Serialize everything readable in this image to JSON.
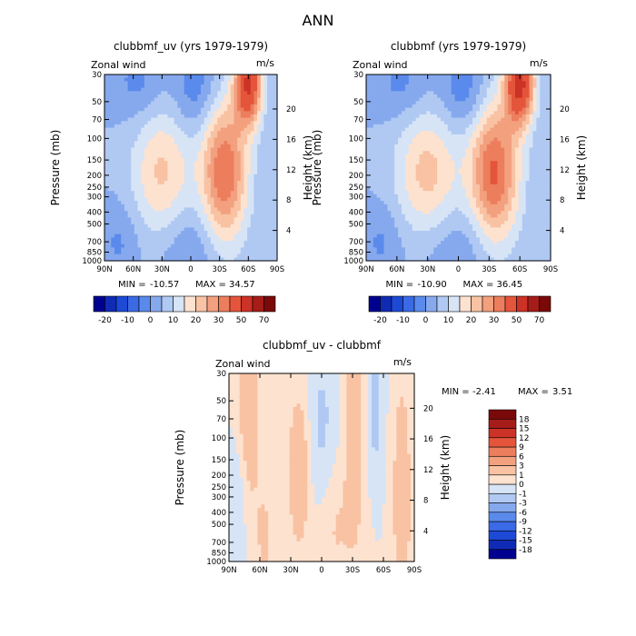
{
  "page_title": "ANN",
  "chart_data": [
    {
      "type": "heatmap",
      "id": "p1",
      "title": "clubbmf_uv (yrs 1979-1979)",
      "label_left": "Zonal wind",
      "label_right": "m/s",
      "xlabel": "",
      "ylabel": "Pressure (mb)",
      "y2label": "Height (km)",
      "x_ticks": [
        "90N",
        "60N",
        "30N",
        "0",
        "30S",
        "60S",
        "90S"
      ],
      "y_ticks": [
        30,
        50,
        70,
        100,
        150,
        200,
        250,
        300,
        400,
        500,
        700,
        850,
        1000
      ],
      "y2_ticks": [
        4,
        8,
        12,
        16,
        20
      ],
      "ylim": [
        1000,
        30
      ],
      "stats": {
        "min_label": "MIN =",
        "min": "-10.57",
        "max_label": "MAX =",
        "max": "34.57"
      },
      "colorbar": {
        "orientation": "horizontal",
        "labels": [
          "-20",
          "-10",
          "0",
          "10",
          "20",
          "30",
          "50",
          "70"
        ],
        "levels": [
          -25,
          -20,
          -15,
          -10,
          -5,
          0,
          5,
          10,
          15,
          20,
          25,
          30,
          40,
          50,
          60,
          70
        ],
        "colors": [
          "#000090",
          "#0f2bb6",
          "#1c4ad6",
          "#3a6ae6",
          "#5a8aeb",
          "#86a9ee",
          "#b0c9f3",
          "#d6e4f6",
          "#fde2cf",
          "#f8c2a3",
          "#f3a07f",
          "#ec7e5d",
          "#e4553b",
          "#cc3226",
          "#a61c18",
          "#7a0a0a"
        ]
      },
      "field_features": [
        {
          "lat": 30,
          "p": 190,
          "value": 16,
          "sigma_lat": 22,
          "sigma_lnp": 0.85
        },
        {
          "lat": -35,
          "p": 190,
          "value": 30,
          "sigma_lat": 17,
          "sigma_lnp": 0.95
        },
        {
          "lat": -60,
          "p": 35,
          "value": 40,
          "sigma_lat": 10,
          "sigma_lnp": 0.55
        },
        {
          "lat": -5,
          "p": 40,
          "value": -9,
          "sigma_lat": 16,
          "sigma_lnp": 0.55
        },
        {
          "lat": 55,
          "p": 35,
          "value": -7,
          "sigma_lat": 18,
          "sigma_lnp": 0.5
        },
        {
          "lat": 0,
          "p": 800,
          "value": -6,
          "sigma_lat": 24,
          "sigma_lnp": 0.6
        },
        {
          "lat": 75,
          "p": 700,
          "value": -6,
          "sigma_lat": 14,
          "sigma_lnp": 0.5
        }
      ]
    },
    {
      "type": "heatmap",
      "id": "p2",
      "title": "clubbmf (yrs 1979-1979)",
      "label_left": "Zonal wind",
      "label_right": "m/s",
      "xlabel": "",
      "ylabel": "Pressure (mb)",
      "y2label": "Height (km)",
      "x_ticks": [
        "90N",
        "60N",
        "30N",
        "0",
        "30S",
        "60S",
        "90S"
      ],
      "y_ticks": [
        30,
        50,
        70,
        100,
        150,
        200,
        250,
        300,
        400,
        500,
        700,
        850,
        1000
      ],
      "y2_ticks": [
        4,
        8,
        12,
        16,
        20
      ],
      "ylim": [
        1000,
        30
      ],
      "stats": {
        "min_label": "MIN =",
        "min": "-10.90",
        "max_label": "MAX =",
        "max": "36.45"
      },
      "colorbar": {
        "orientation": "horizontal",
        "labels": [
          "-20",
          "-10",
          "0",
          "10",
          "20",
          "30",
          "50",
          "70"
        ],
        "levels": [
          -25,
          -20,
          -15,
          -10,
          -5,
          0,
          5,
          10,
          15,
          20,
          25,
          30,
          40,
          50,
          60,
          70
        ],
        "colors": [
          "#000090",
          "#0f2bb6",
          "#1c4ad6",
          "#3a6ae6",
          "#5a8aeb",
          "#86a9ee",
          "#b0c9f3",
          "#d6e4f6",
          "#fde2cf",
          "#f8c2a3",
          "#f3a07f",
          "#ec7e5d",
          "#e4553b",
          "#cc3226",
          "#a61c18",
          "#7a0a0a"
        ]
      },
      "field_features": [
        {
          "lat": 30,
          "p": 190,
          "value": 17,
          "sigma_lat": 22,
          "sigma_lnp": 0.85
        },
        {
          "lat": -35,
          "p": 190,
          "value": 31,
          "sigma_lat": 17,
          "sigma_lnp": 0.95
        },
        {
          "lat": -60,
          "p": 35,
          "value": 42,
          "sigma_lat": 10,
          "sigma_lnp": 0.55
        },
        {
          "lat": -5,
          "p": 40,
          "value": -9.5,
          "sigma_lat": 16,
          "sigma_lnp": 0.55
        },
        {
          "lat": 55,
          "p": 35,
          "value": -7,
          "sigma_lat": 18,
          "sigma_lnp": 0.5
        },
        {
          "lat": 0,
          "p": 800,
          "value": -6,
          "sigma_lat": 24,
          "sigma_lnp": 0.6
        },
        {
          "lat": 75,
          "p": 700,
          "value": -6,
          "sigma_lat": 14,
          "sigma_lnp": 0.5
        }
      ]
    },
    {
      "type": "heatmap",
      "id": "p3",
      "title": "clubbmf_uv - clubbmf",
      "label_left": "Zonal wind",
      "label_right": "m/s",
      "xlabel": "",
      "ylabel": "Pressure (mb)",
      "y2label": "Height (km)",
      "x_ticks": [
        "90N",
        "60N",
        "30N",
        "0",
        "30S",
        "60S",
        "90S"
      ],
      "y_ticks": [
        30,
        50,
        70,
        100,
        150,
        200,
        250,
        300,
        400,
        500,
        700,
        850,
        1000
      ],
      "y2_ticks": [
        4,
        8,
        12,
        16,
        20
      ],
      "ylim": [
        1000,
        30
      ],
      "stats": {
        "min_label": "MIN =",
        "min": "-2.41",
        "max_label": "MAX =",
        "max": "3.51"
      },
      "colorbar": {
        "orientation": "vertical",
        "labels": [
          "18",
          "15",
          "12",
          "9",
          "6",
          "3",
          "1",
          "0",
          "-1",
          "-3",
          "-6",
          "-9",
          "-12",
          "-15",
          "-18"
        ],
        "levels": [
          -18,
          -15,
          -12,
          -9,
          -6,
          -3,
          -1,
          0,
          1,
          3,
          6,
          9,
          12,
          15,
          18
        ],
        "colors": [
          "#000090",
          "#0f2bb6",
          "#1c4ad6",
          "#3a6ae6",
          "#5a8aeb",
          "#86a9ee",
          "#b0c9f3",
          "#d6e4f6",
          "#fde2cf",
          "#f8c2a3",
          "#f3a07f",
          "#ec7e5d",
          "#e4553b",
          "#cc3226",
          "#a61c18",
          "#7a0a0a"
        ]
      },
      "field_features": [
        {
          "lat": 72,
          "p": 55,
          "value": 2.0,
          "sigma_lat": 8,
          "sigma_lnp": 1.2
        },
        {
          "lat": 22,
          "p": 180,
          "value": 2.4,
          "sigma_lat": 7,
          "sigma_lnp": 1.0
        },
        {
          "lat": -32,
          "p": 80,
          "value": 2.2,
          "sigma_lat": 6,
          "sigma_lnp": 1.4
        },
        {
          "lat": -78,
          "p": 300,
          "value": 2.2,
          "sigma_lat": 6,
          "sigma_lnp": 1.5
        },
        {
          "lat": -12,
          "p": 500,
          "value": 1.2,
          "sigma_lat": 14,
          "sigma_lnp": 0.9
        },
        {
          "lat": 55,
          "p": 650,
          "value": 1.1,
          "sigma_lat": 10,
          "sigma_lnp": 1.0
        },
        {
          "lat": 0,
          "p": 90,
          "value": -1.3,
          "sigma_lat": 10,
          "sigma_lnp": 1.2
        },
        {
          "lat": -52,
          "p": 60,
          "value": -1.6,
          "sigma_lat": 5,
          "sigma_lnp": 0.8
        },
        {
          "lat": 82,
          "p": 350,
          "value": -1.2,
          "sigma_lat": 6,
          "sigma_lnp": 1.0
        }
      ]
    }
  ]
}
